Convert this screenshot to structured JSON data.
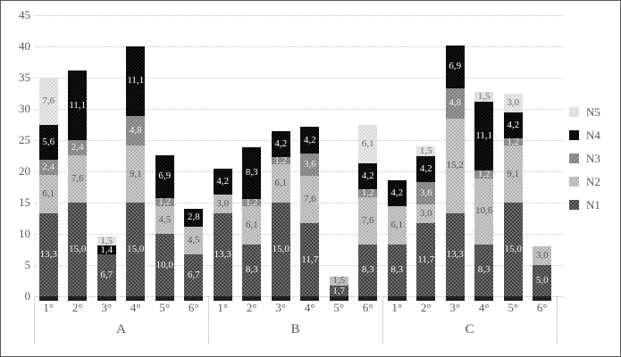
{
  "styles": {
    "background": "#ffffff",
    "border_color": "#595959",
    "gridline_color": "#c3c3c3",
    "axis_text_color": "#595959",
    "bar_base_tick_color": "#1f1f1f",
    "series_palette": {
      "N1": {
        "base": "#7b7b7b",
        "dot": "#3f3f3f",
        "label_color": "#f5f5f5"
      },
      "N2": {
        "base": "#d6d6d6",
        "dot": "#b0b0b0",
        "label_color": "#595959"
      },
      "N3": {
        "base": "#a1a1a1",
        "dot": "#7f7f7f",
        "label_color": "#efefef"
      },
      "N4": {
        "base": "#1e1e1e",
        "dot": "#000000",
        "label_color": "#ffffff"
      },
      "N5": {
        "base": "#f0f0f0",
        "dot": "#d7d7d7",
        "label_color": "#6b6b6b"
      }
    }
  },
  "chart_data": {
    "type": "bar",
    "stacked": true,
    "title": "",
    "xlabel": "",
    "ylabel": "",
    "grid": true,
    "y_axis": {
      "min": 0,
      "max": 45,
      "step": 5,
      "tick_labels": [
        "0",
        "5",
        "10",
        "15",
        "20",
        "25",
        "30",
        "35",
        "40",
        "45"
      ]
    },
    "legend": {
      "position": "right",
      "entries": [
        "N5",
        "N4",
        "N3",
        "N2",
        "N1"
      ]
    },
    "series_order_bottom_up": [
      "N1",
      "N2",
      "N3",
      "N4",
      "N5"
    ],
    "groups": [
      {
        "label": "A",
        "bars": [
          {
            "label": "1°",
            "segments": [
              {
                "series": "N1",
                "value": 13.3,
                "label": "13,3"
              },
              {
                "series": "N2",
                "value": 6.1,
                "label": "6,1"
              },
              {
                "series": "N3",
                "value": 2.4,
                "label": "2,4"
              },
              {
                "series": "N4",
                "value": 5.6,
                "label": "5,6"
              },
              {
                "series": "N5",
                "value": 7.6,
                "label": "7,6"
              }
            ]
          },
          {
            "label": "2°",
            "segments": [
              {
                "series": "N1",
                "value": 15.0,
                "label": "15,0"
              },
              {
                "series": "N2",
                "value": 7.6,
                "label": "7,6"
              },
              {
                "series": "N3",
                "value": 2.4,
                "label": "2,4"
              },
              {
                "series": "N4",
                "value": 11.1,
                "label": "11,1"
              }
            ]
          },
          {
            "label": "3°",
            "segments": [
              {
                "series": "N1",
                "value": 6.7,
                "label": "6,7"
              },
              {
                "series": "N4",
                "value": 1.4,
                "label": "1,4"
              },
              {
                "series": "N5",
                "value": 1.5,
                "label": "1,5"
              }
            ]
          },
          {
            "label": "4°",
            "segments": [
              {
                "series": "N1",
                "value": 15.0,
                "label": "15,0"
              },
              {
                "series": "N2",
                "value": 9.1,
                "label": "9,1"
              },
              {
                "series": "N3",
                "value": 4.8,
                "label": "4,8"
              },
              {
                "series": "N4",
                "value": 11.1,
                "label": "11,1"
              }
            ]
          },
          {
            "label": "5°",
            "segments": [
              {
                "series": "N1",
                "value": 10.0,
                "label": "10,0"
              },
              {
                "series": "N2",
                "value": 4.5,
                "label": "4,5"
              },
              {
                "series": "N3",
                "value": 1.2,
                "label": "1,2"
              },
              {
                "series": "N4",
                "value": 6.9,
                "label": "6,9"
              }
            ]
          },
          {
            "label": "6°",
            "segments": [
              {
                "series": "N1",
                "value": 6.7,
                "label": "6,7"
              },
              {
                "series": "N2",
                "value": 4.5,
                "label": "4,5"
              },
              {
                "series": "N4",
                "value": 2.8,
                "label": "2,8"
              }
            ]
          }
        ]
      },
      {
        "label": "B",
        "bars": [
          {
            "label": "1°",
            "segments": [
              {
                "series": "N1",
                "value": 13.3,
                "label": "13,3"
              },
              {
                "series": "N2",
                "value": 3.0,
                "label": "3,0"
              },
              {
                "series": "N4",
                "value": 4.2,
                "label": "4,2"
              }
            ]
          },
          {
            "label": "2°",
            "segments": [
              {
                "series": "N1",
                "value": 8.3,
                "label": "8,3"
              },
              {
                "series": "N2",
                "value": 6.1,
                "label": "6,1"
              },
              {
                "series": "N3",
                "value": 1.2,
                "label": "1,2"
              },
              {
                "series": "N4",
                "value": 8.3,
                "label": "8,3"
              }
            ]
          },
          {
            "label": "3°",
            "segments": [
              {
                "series": "N1",
                "value": 15.0,
                "label": "15,0"
              },
              {
                "series": "N2",
                "value": 6.1,
                "label": "6,1"
              },
              {
                "series": "N3",
                "value": 1.2,
                "label": "1,2"
              },
              {
                "series": "N4",
                "value": 4.2,
                "label": "4,2"
              }
            ]
          },
          {
            "label": "4°",
            "segments": [
              {
                "series": "N1",
                "value": 11.7,
                "label": "11,7"
              },
              {
                "series": "N2",
                "value": 7.6,
                "label": "7,6"
              },
              {
                "series": "N3",
                "value": 3.6,
                "label": "3,6"
              },
              {
                "series": "N4",
                "value": 4.2,
                "label": "4,2"
              }
            ]
          },
          {
            "label": "5°",
            "segments": [
              {
                "series": "N1",
                "value": 1.7,
                "label": "1,7"
              },
              {
                "series": "N2",
                "value": 1.5,
                "label": "1,5"
              }
            ]
          },
          {
            "label": "6°",
            "segments": [
              {
                "series": "N1",
                "value": 8.3,
                "label": "8,3"
              },
              {
                "series": "N2",
                "value": 7.6,
                "label": "7,6"
              },
              {
                "series": "N3",
                "value": 1.2,
                "label": "1,2"
              },
              {
                "series": "N4",
                "value": 4.2,
                "label": "4,2"
              },
              {
                "series": "N5",
                "value": 6.1,
                "label": "6,1"
              }
            ]
          }
        ]
      },
      {
        "label": "C",
        "bars": [
          {
            "label": "1°",
            "segments": [
              {
                "series": "N1",
                "value": 8.3,
                "label": "8,3"
              },
              {
                "series": "N2",
                "value": 6.1,
                "label": "6,1"
              },
              {
                "series": "N4",
                "value": 4.2,
                "label": "4,2"
              }
            ]
          },
          {
            "label": "2°",
            "segments": [
              {
                "series": "N1",
                "value": 11.7,
                "label": "11,7"
              },
              {
                "series": "N2",
                "value": 3.0,
                "label": "3,0"
              },
              {
                "series": "N3",
                "value": 3.6,
                "label": "3,6"
              },
              {
                "series": "N4",
                "value": 4.2,
                "label": "4,2"
              },
              {
                "series": "N5",
                "value": 1.5,
                "label": "1,5"
              }
            ]
          },
          {
            "label": "3°",
            "segments": [
              {
                "series": "N1",
                "value": 13.3,
                "label": "13,3"
              },
              {
                "series": "N2",
                "value": 15.2,
                "label": "15,2"
              },
              {
                "series": "N3",
                "value": 4.8,
                "label": "4,8"
              },
              {
                "series": "N4",
                "value": 6.9,
                "label": "6,9"
              }
            ]
          },
          {
            "label": "4°",
            "segments": [
              {
                "series": "N1",
                "value": 8.3,
                "label": "8,3"
              },
              {
                "series": "N2",
                "value": 10.6,
                "label": "10,6"
              },
              {
                "series": "N3",
                "value": 1.2,
                "label": "1,2"
              },
              {
                "series": "N4",
                "value": 11.1,
                "label": "11,1"
              },
              {
                "series": "N5",
                "value": 1.5,
                "label": "1,5"
              }
            ]
          },
          {
            "label": "5°",
            "segments": [
              {
                "series": "N1",
                "value": 15.0,
                "label": "15,0"
              },
              {
                "series": "N2",
                "value": 9.1,
                "label": "9,1"
              },
              {
                "series": "N3",
                "value": 1.2,
                "label": "1,2"
              },
              {
                "series": "N4",
                "value": 4.2,
                "label": "4,2"
              },
              {
                "series": "N5",
                "value": 3.0,
                "label": "3,0"
              }
            ]
          },
          {
            "label": "6°",
            "segments": [
              {
                "series": "N1",
                "value": 5.0,
                "label": "5,0"
              },
              {
                "series": "N2",
                "value": 3.0,
                "label": "3,0"
              }
            ]
          }
        ]
      }
    ]
  }
}
